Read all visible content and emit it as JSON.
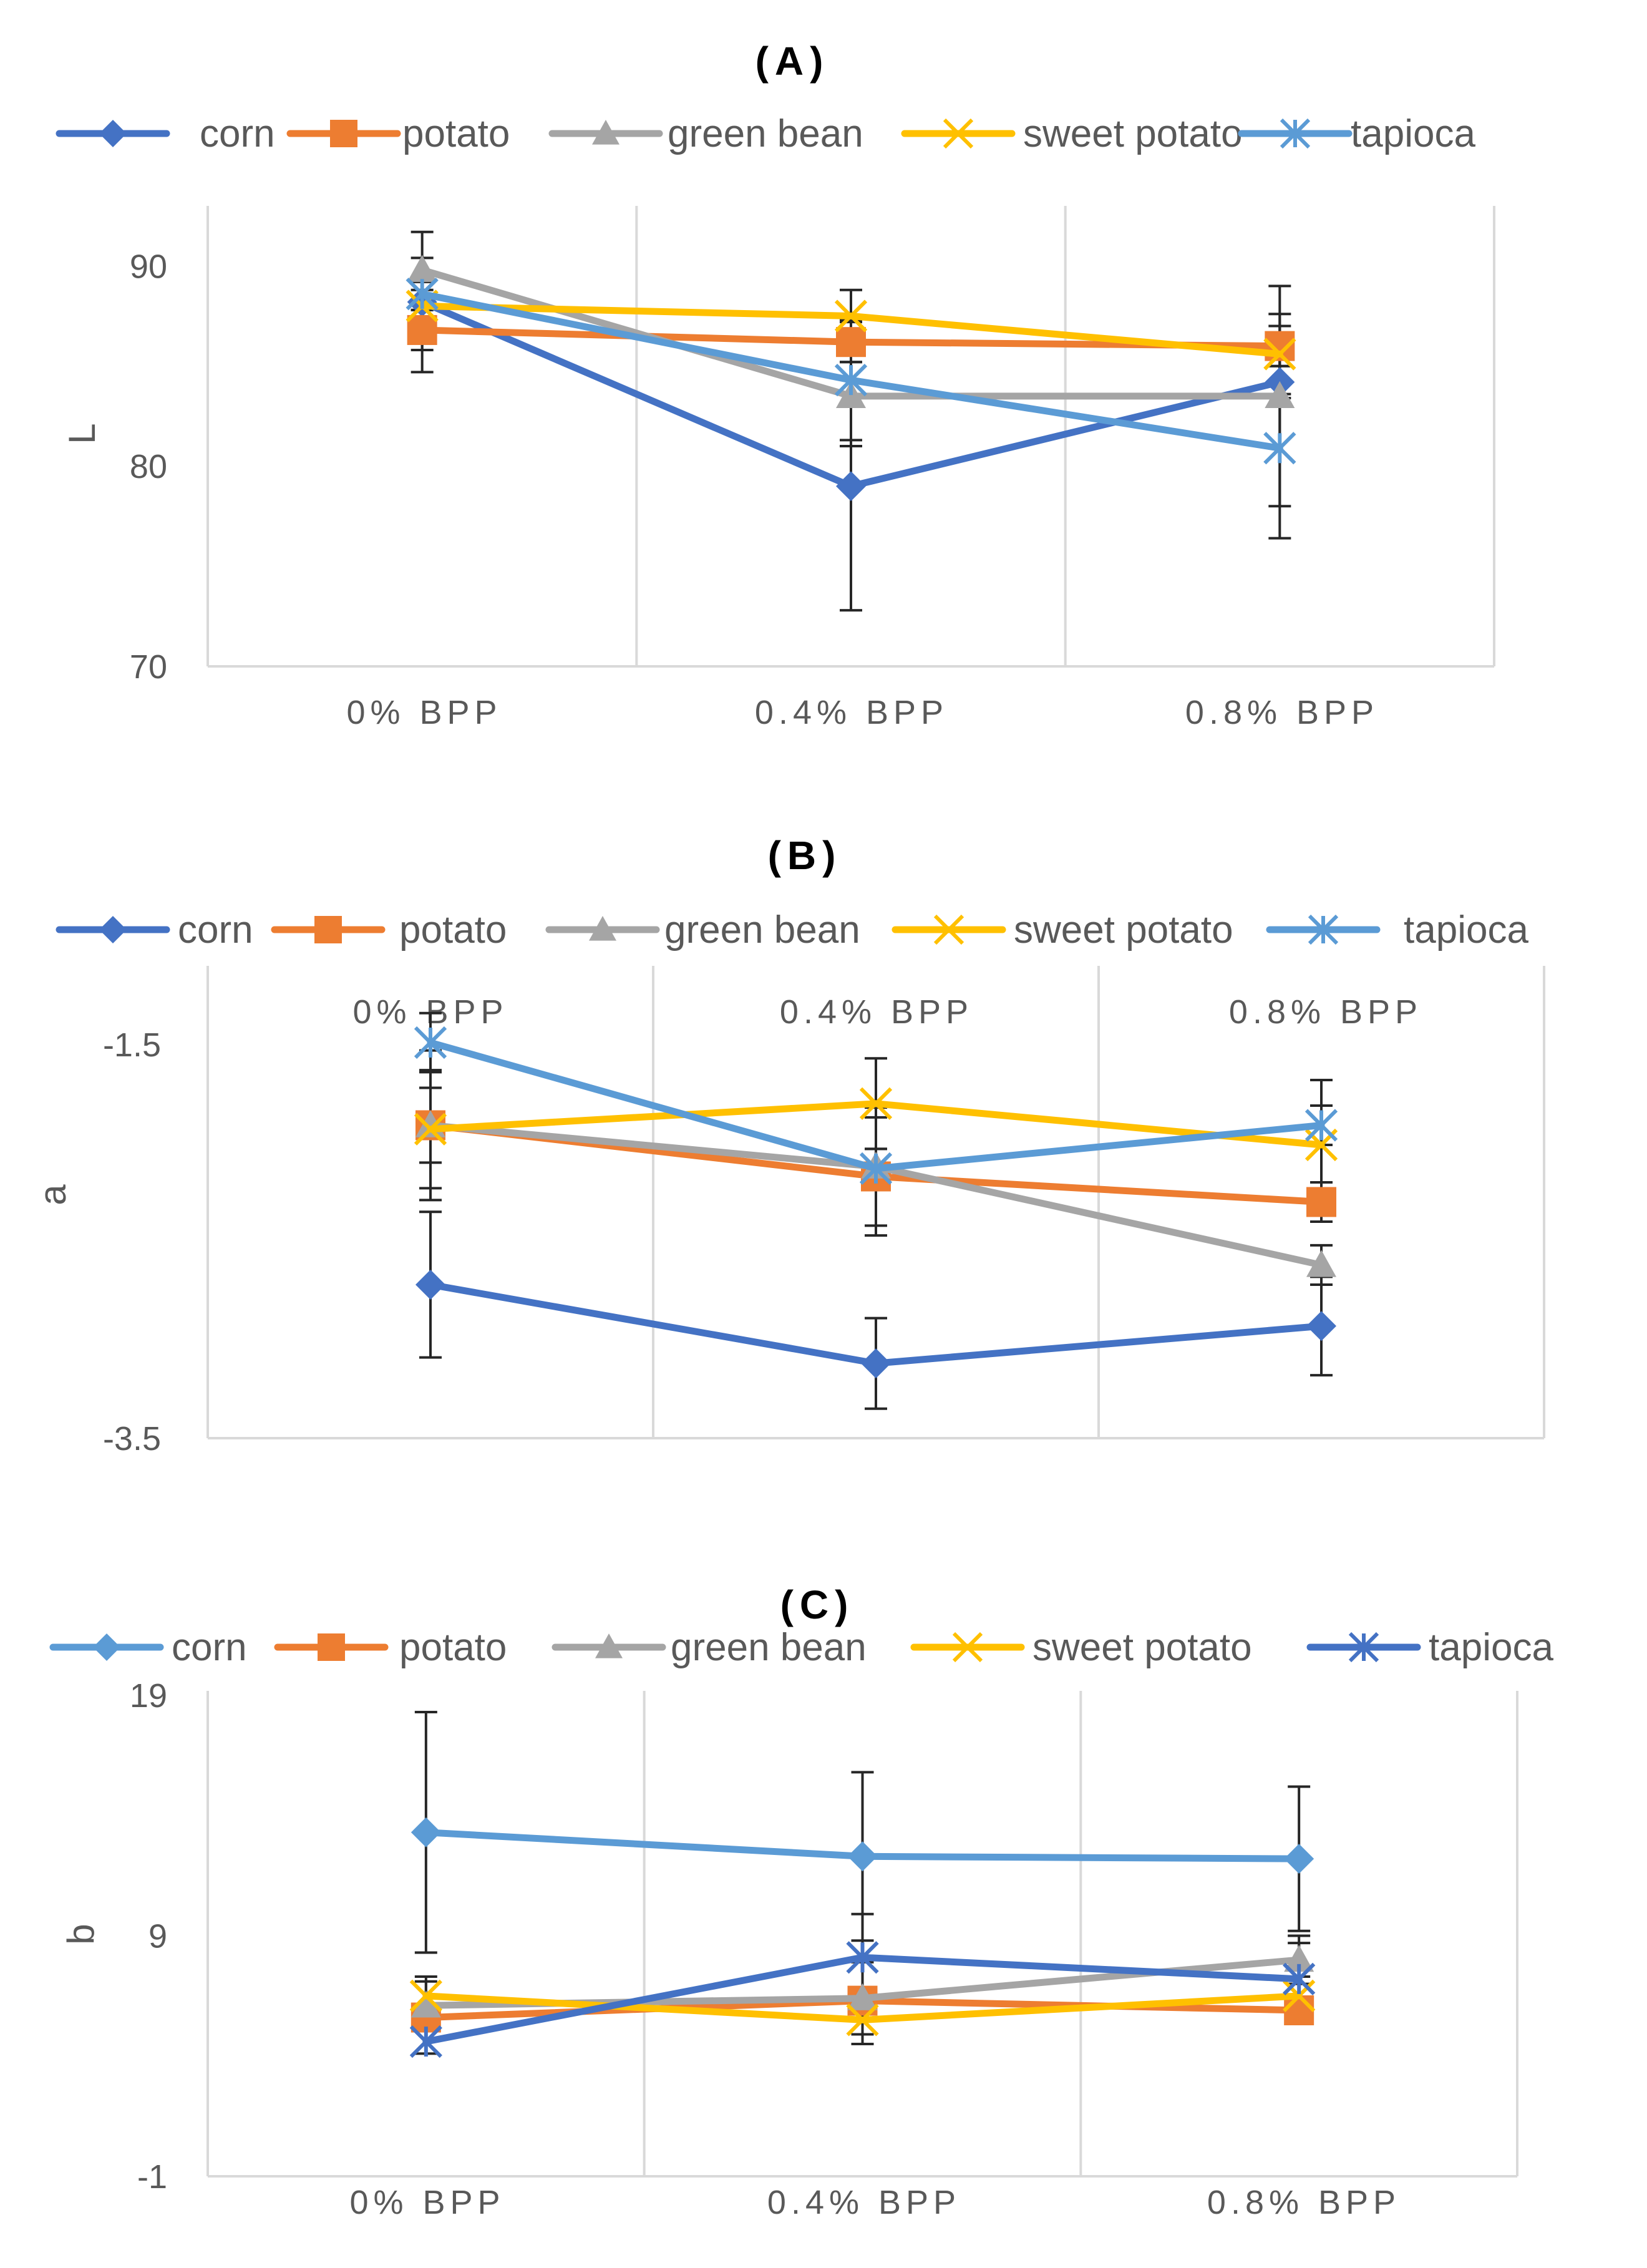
{
  "chart_data": [
    {
      "type": "line",
      "title": "(A)",
      "xlabel": "",
      "ylabel": "L",
      "categories": [
        "0% BPP",
        "0.4% BPP",
        "0.8% BPP"
      ],
      "ylim": [
        70,
        93
      ],
      "yticks": [
        70,
        80,
        90
      ],
      "tick_labels": [
        "70",
        "80",
        "90"
      ],
      "category_position": "bottom",
      "legend_position": "top",
      "series": [
        {
          "name": "corn",
          "color": "#4472C4",
          "marker": "diamond",
          "values": [
            88.2,
            79.0,
            84.2
          ],
          "errors": [
            3.5,
            6.2,
            0.8
          ]
        },
        {
          "name": "potato",
          "color": "#ED7D31",
          "marker": "square",
          "values": [
            86.8,
            86.2,
            86.0
          ],
          "errors": [
            1.0,
            1.0,
            1.0
          ]
        },
        {
          "name": "green bean",
          "color": "#A5A5A5",
          "marker": "triangle",
          "values": [
            89.8,
            83.5,
            83.5
          ],
          "errors": [
            0.6,
            2.5,
            5.5
          ]
        },
        {
          "name": "sweet potato",
          "color": "#FFC000",
          "marker": "x",
          "values": [
            88.0,
            87.5,
            85.6
          ],
          "errors": [
            0.8,
            1.3,
            2.0
          ]
        },
        {
          "name": "tapioca",
          "color": "#5B9BD5",
          "marker": "star",
          "values": [
            88.6,
            84.3,
            80.9
          ],
          "errors": [
            0.8,
            3.0,
            4.5
          ]
        }
      ]
    },
    {
      "type": "line",
      "title": "(B)",
      "xlabel": "",
      "ylabel": "a",
      "categories": [
        "0% BPP",
        "0.4% BPP",
        "0.8% BPP"
      ],
      "ylim": [
        -3.5,
        -1.1
      ],
      "yticks": [
        -3.5,
        -1.5
      ],
      "tick_labels": [
        "-3.5",
        "-1.5"
      ],
      "category_position": "top",
      "legend_position": "top",
      "series": [
        {
          "name": "corn",
          "color": "#4472C4",
          "marker": "diamond",
          "values": [
            -2.72,
            -3.12,
            -2.93
          ],
          "errors": [
            0.37,
            0.23,
            0.25
          ]
        },
        {
          "name": "potato",
          "color": "#ED7D31",
          "marker": "square",
          "values": [
            -1.91,
            -2.17,
            -2.3
          ],
          "errors": [
            0.19,
            0.3,
            0.1
          ]
        },
        {
          "name": "green bean",
          "color": "#A5A5A5",
          "marker": "triangle",
          "values": [
            -1.91,
            -2.12,
            -2.62
          ],
          "errors": [
            0.38,
            0.3,
            0.1
          ]
        },
        {
          "name": "sweet potato",
          "color": "#FFC000",
          "marker": "x",
          "values": [
            -1.93,
            -1.8,
            -2.01
          ],
          "errors": [
            0.3,
            0.23,
            0.33
          ]
        },
        {
          "name": "tapioca",
          "color": "#5B9BD5",
          "marker": "star",
          "values": [
            -1.49,
            -2.13,
            -1.91
          ],
          "errors": [
            0.15,
            0.1,
            0.1
          ]
        }
      ]
    },
    {
      "type": "line",
      "title": "(C)",
      "xlabel": "",
      "ylabel": "b",
      "categories": [
        "0% BPP",
        "0.4% BPP",
        "0.8% BPP"
      ],
      "ylim": [
        -1,
        19
      ],
      "yticks": [
        -1,
        9,
        19
      ],
      "tick_labels": [
        "-1",
        "9",
        "19"
      ],
      "category_position": "bottom",
      "legend_position": "top",
      "series": [
        {
          "name": "corn",
          "color": "#5B9BD5",
          "marker": "diamond",
          "values": [
            13.3,
            12.3,
            12.2
          ],
          "errors": [
            5.0,
            3.5,
            3.0
          ]
        },
        {
          "name": "potato",
          "color": "#ED7D31",
          "marker": "square",
          "values": [
            5.6,
            6.3,
            5.9
          ],
          "errors": [
            0.5,
            0.5,
            0.5
          ]
        },
        {
          "name": "green bean",
          "color": "#A5A5A5",
          "marker": "triangle",
          "values": [
            6.1,
            6.4,
            8.0
          ],
          "errors": [
            1.0,
            1.5,
            1.0
          ]
        },
        {
          "name": "sweet potato",
          "color": "#FFC000",
          "marker": "x",
          "values": [
            6.5,
            5.5,
            6.5
          ],
          "errors": [
            0.8,
            1.0,
            0.8
          ]
        },
        {
          "name": "tapioca",
          "color": "#4472C4",
          "marker": "star",
          "values": [
            4.6,
            8.1,
            7.2
          ],
          "errors": [
            0.5,
            1.8,
            1.5
          ]
        }
      ]
    }
  ]
}
